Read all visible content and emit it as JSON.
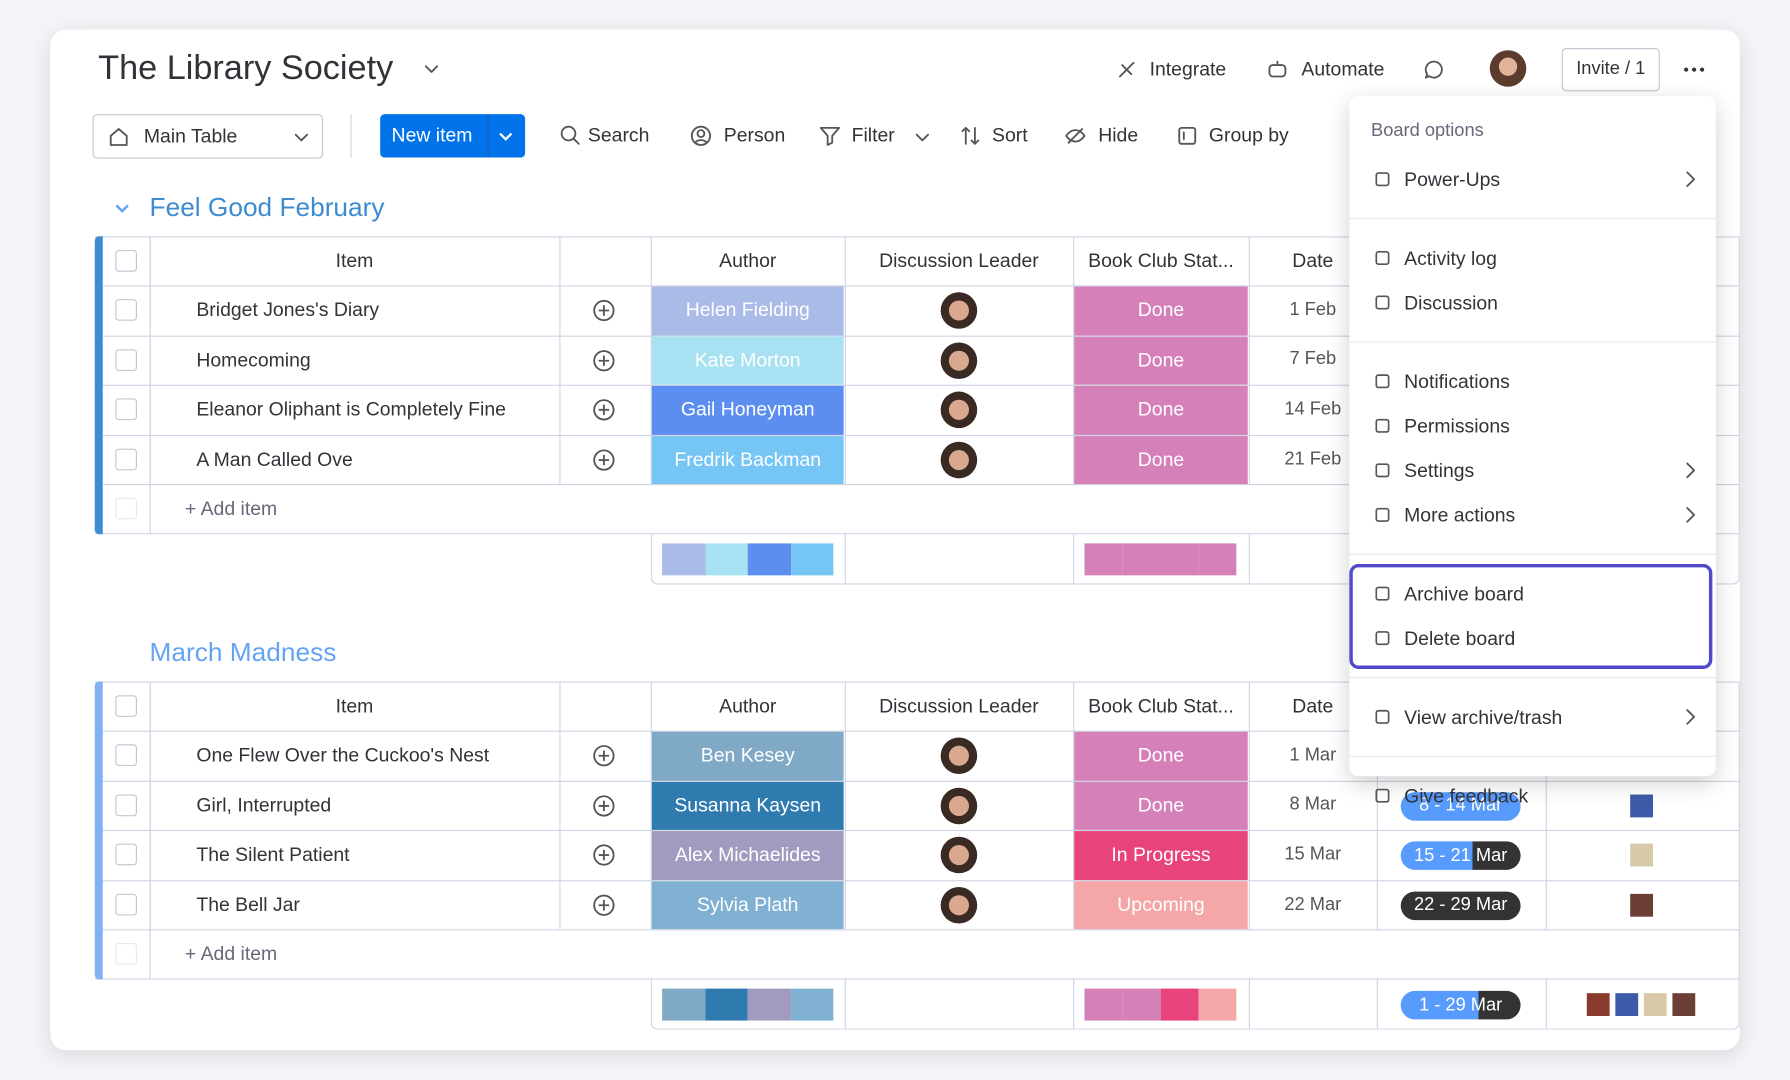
{
  "board": {
    "title": "The Library Society",
    "actions": [
      "Integrate",
      "Automate"
    ],
    "invite": "Invite / 1"
  },
  "toolbar": {
    "view": "Main Table",
    "new_item": "New item",
    "tools": [
      "Search",
      "Person",
      "Filter",
      "Sort",
      "Hide",
      "Group by"
    ]
  },
  "groups": [
    {
      "name": "Feel Good February",
      "color": "#3d8bd0",
      "bar_color": "#3d8bd0",
      "columns": [
        "Item",
        "Author",
        "Discussion Leader",
        "Book Club Stat...",
        "Date"
      ],
      "rows": [
        {
          "item": "Bridget Jones's Diary",
          "author": "Helen Fielding",
          "author_color": "#abbbe8",
          "status": "Done",
          "status_color": "#d580b8",
          "date": "1 Feb"
        },
        {
          "item": "Homecoming",
          "author": "Kate Morton",
          "author_color": "#a7e1f2",
          "status": "Done",
          "status_color": "#d580b8",
          "date": "7 Feb"
        },
        {
          "item": "Eleanor Oliphant is Completely Fine",
          "author": "Gail Honeyman",
          "author_color": "#5c8ef0",
          "status": "Done",
          "status_color": "#d580b8",
          "date": "14 Feb"
        },
        {
          "item": "A Man Called Ove",
          "author": "Fredrik Backman",
          "author_color": "#75c5f5",
          "status": "Done",
          "status_color": "#d580b8",
          "date": "21 Feb"
        }
      ],
      "add_item": "+ Add item"
    },
    {
      "name": "March Madness",
      "color": "#66a3f0",
      "bar_color": "#7fb2f5",
      "columns": [
        "Item",
        "Author",
        "Discussion Leader",
        "Book Club Stat...",
        "Date"
      ],
      "rows": [
        {
          "item": "One Flew Over the Cuckoo's Nest",
          "author": "Ben Kesey",
          "author_color": "#80a9c6",
          "status": "Done",
          "status_color": "#d580b8",
          "date": "1 Mar"
        },
        {
          "item": "Girl, Interrupted",
          "author": "Susanna Kaysen",
          "author_color": "#2f7bb0",
          "status": "Done",
          "status_color": "#d580b8",
          "date": "8 Mar",
          "timeline": "8 - 14 Mar",
          "timeline_progress": 100
        },
        {
          "item": "The Silent Patient",
          "author": "Alex Michaelides",
          "author_color": "#a09cc0",
          "status": "In Progress",
          "status_color": "#e8437b",
          "date": "15 Mar",
          "timeline": "15 - 21 Mar",
          "timeline_progress": 60
        },
        {
          "item": "The Bell Jar",
          "author": "Sylvia Plath",
          "author_color": "#80b0d2",
          "status": "Upcoming",
          "status_color": "#f5a6a6",
          "date": "22 Mar",
          "timeline": "22 - 29 Mar",
          "timeline_progress": 0
        }
      ],
      "add_item": "+ Add item",
      "timeline_summary": "1 - 29 Mar",
      "timeline_summary_progress": 65
    }
  ],
  "menu": {
    "title": "Board options",
    "highlight_color": "#5148cc",
    "sections": [
      {
        "items": [
          {
            "label": "Power-Ups",
            "submenu": true
          }
        ]
      },
      {
        "items": [
          {
            "label": "Activity log"
          },
          {
            "label": "Discussion"
          }
        ]
      },
      {
        "items": [
          {
            "label": "Notifications"
          },
          {
            "label": "Permissions"
          },
          {
            "label": "Settings",
            "submenu": true
          },
          {
            "label": "More actions",
            "submenu": true
          }
        ]
      },
      {
        "highlight": true,
        "items": [
          {
            "label": "Archive board"
          },
          {
            "label": "Delete board"
          }
        ]
      },
      {
        "items": [
          {
            "label": "View archive/trash",
            "submenu": true
          }
        ]
      },
      {
        "items": [
          {
            "label": "Give feedback"
          }
        ]
      }
    ]
  }
}
